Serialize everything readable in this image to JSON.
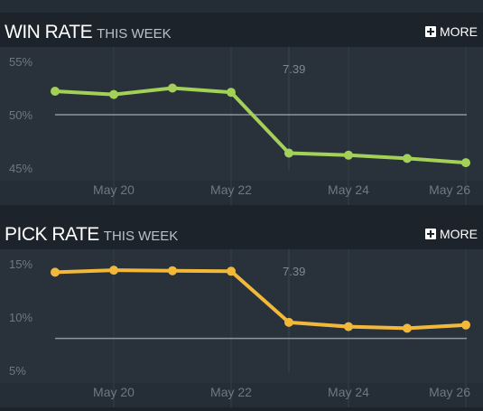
{
  "more_label": "MORE",
  "chart_data": [
    {
      "type": "line",
      "title": "WIN RATE",
      "subtitle": "THIS WEEK",
      "x": [
        "May 19",
        "May 20",
        "May 21",
        "May 22",
        "May 23",
        "May 24",
        "May 25",
        "May 26"
      ],
      "xticks": [
        "May 20",
        "May 22",
        "May 24",
        "May 26"
      ],
      "values": [
        52.2,
        51.9,
        52.5,
        52.1,
        46.4,
        46.2,
        45.9,
        45.5
      ],
      "ylim": [
        45,
        55
      ],
      "yticks": [
        "45%",
        "50%",
        "55%"
      ],
      "reference_value": 50,
      "annotation": {
        "label": "7.39",
        "x": "May 23"
      },
      "color": "#a3d158"
    },
    {
      "type": "line",
      "title": "PICK RATE",
      "subtitle": "THIS WEEK",
      "x": [
        "May 19",
        "May 20",
        "May 21",
        "May 22",
        "May 23",
        "May 24",
        "May 25",
        "May 26"
      ],
      "xticks": [
        "May 20",
        "May 22",
        "May 24",
        "May 26"
      ],
      "values": [
        14.2,
        14.4,
        14.35,
        14.3,
        9.5,
        9.1,
        8.95,
        9.25
      ],
      "ylim": [
        5,
        15
      ],
      "yticks": [
        "5%",
        "10%",
        "15%"
      ],
      "reference_value": 8,
      "annotation": {
        "label": "7.39",
        "x": "May 23"
      },
      "color": "#f2b83a"
    }
  ]
}
